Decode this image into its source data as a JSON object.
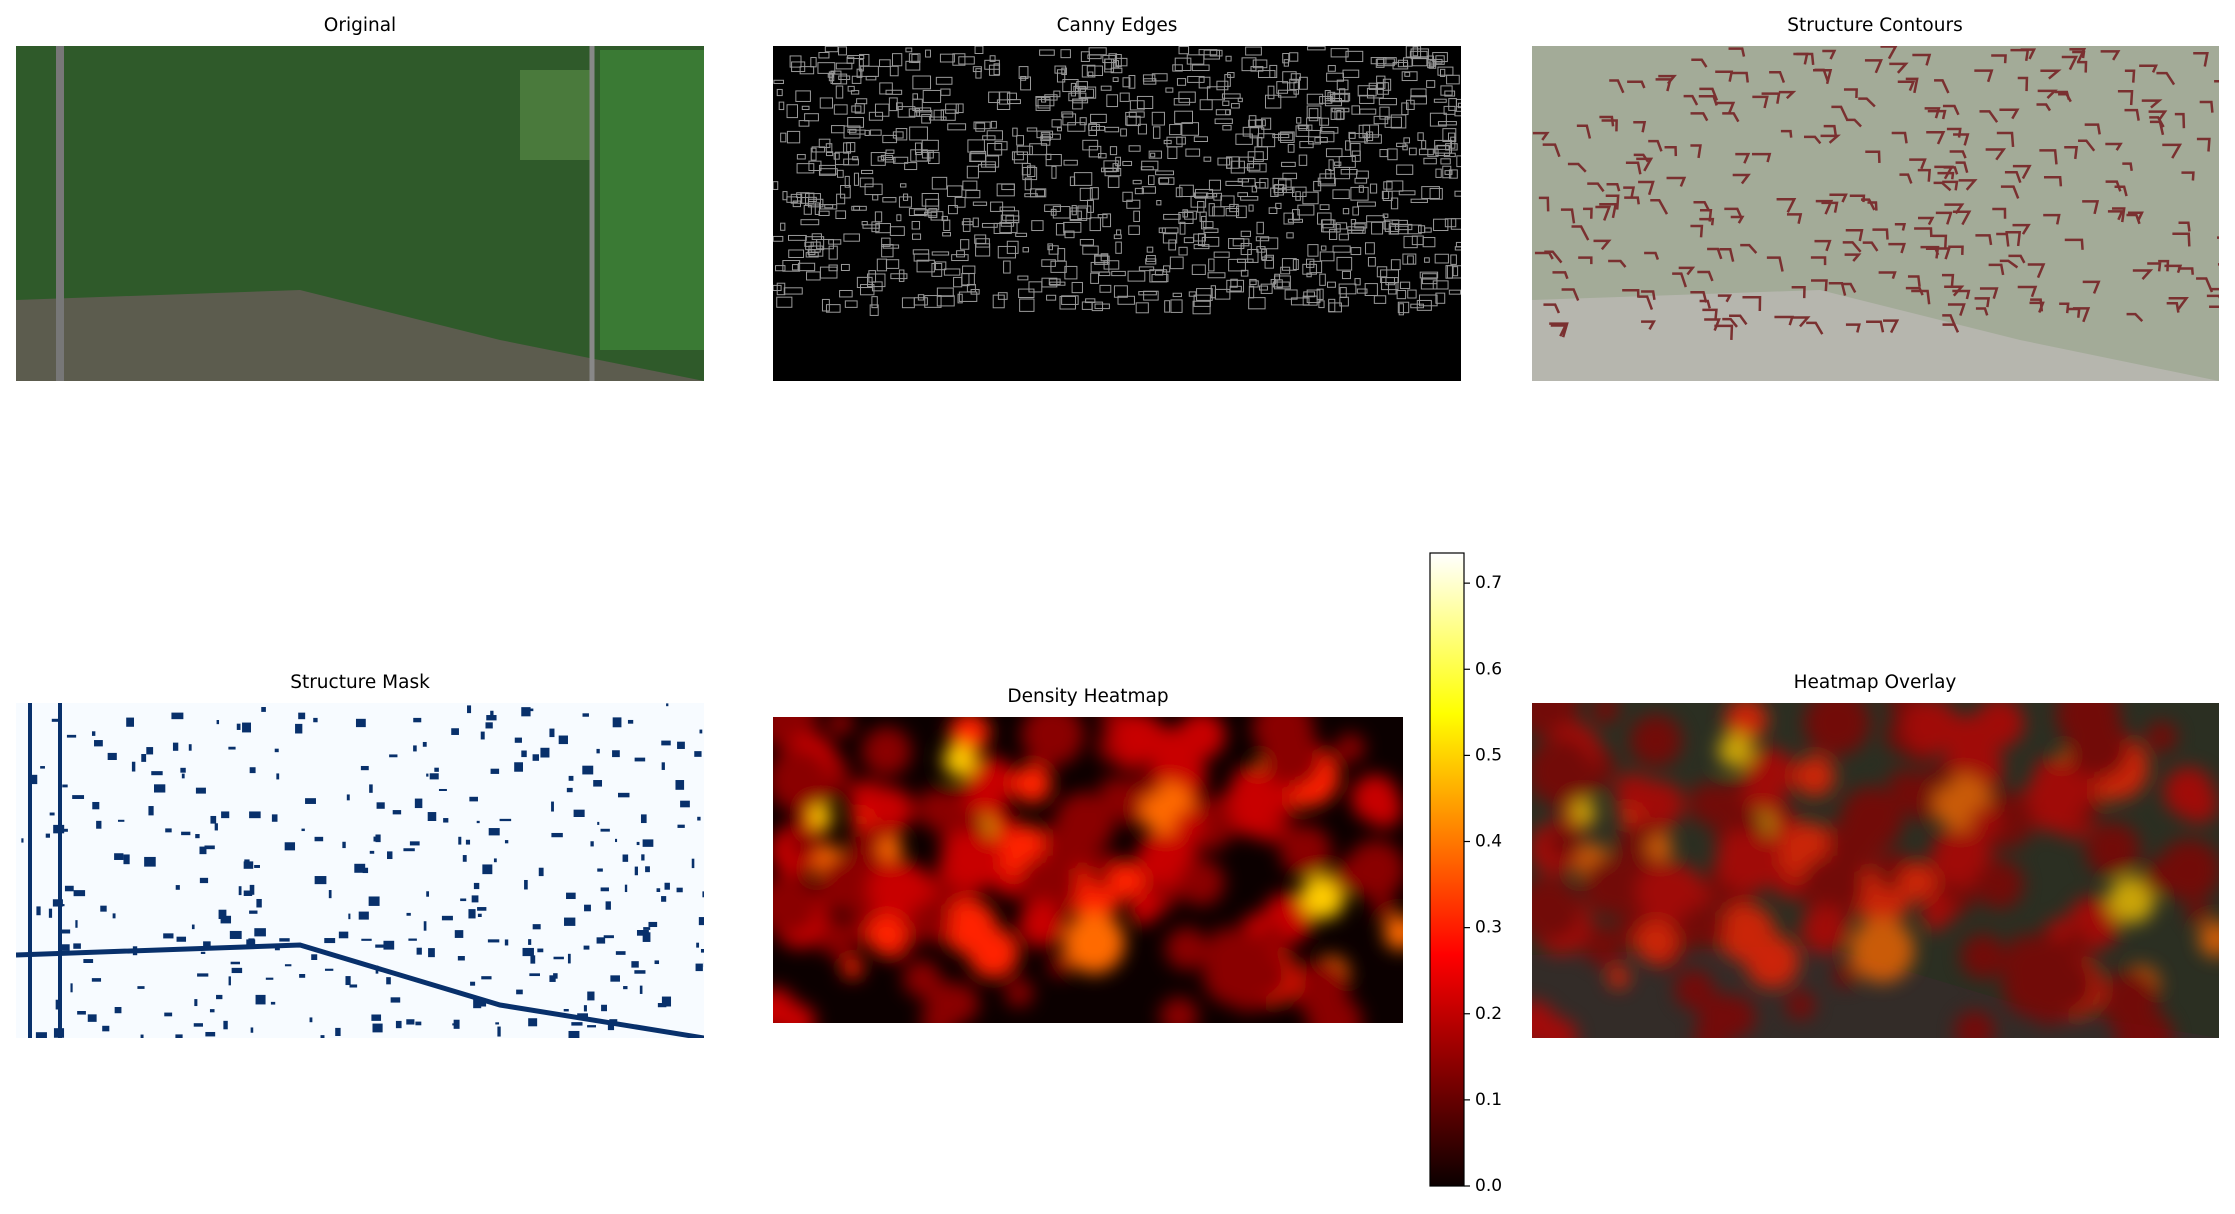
{
  "panels": [
    {
      "title": "Original"
    },
    {
      "title": "Canny Edges"
    },
    {
      "title": "Structure Contours"
    },
    {
      "title": "Structure Mask"
    },
    {
      "title": "Density Heatmap"
    },
    {
      "title": "Heatmap Overlay"
    }
  ],
  "colorbar": {
    "type": "colorbar",
    "cmap": "hot",
    "ylim": [
      0,
      0.735
    ],
    "yticks": [
      {
        "value": 0,
        "label": "0.0"
      },
      0.1,
      0.2,
      0.3,
      0.4,
      0.5,
      0.6,
      0.7
    ]
  }
}
